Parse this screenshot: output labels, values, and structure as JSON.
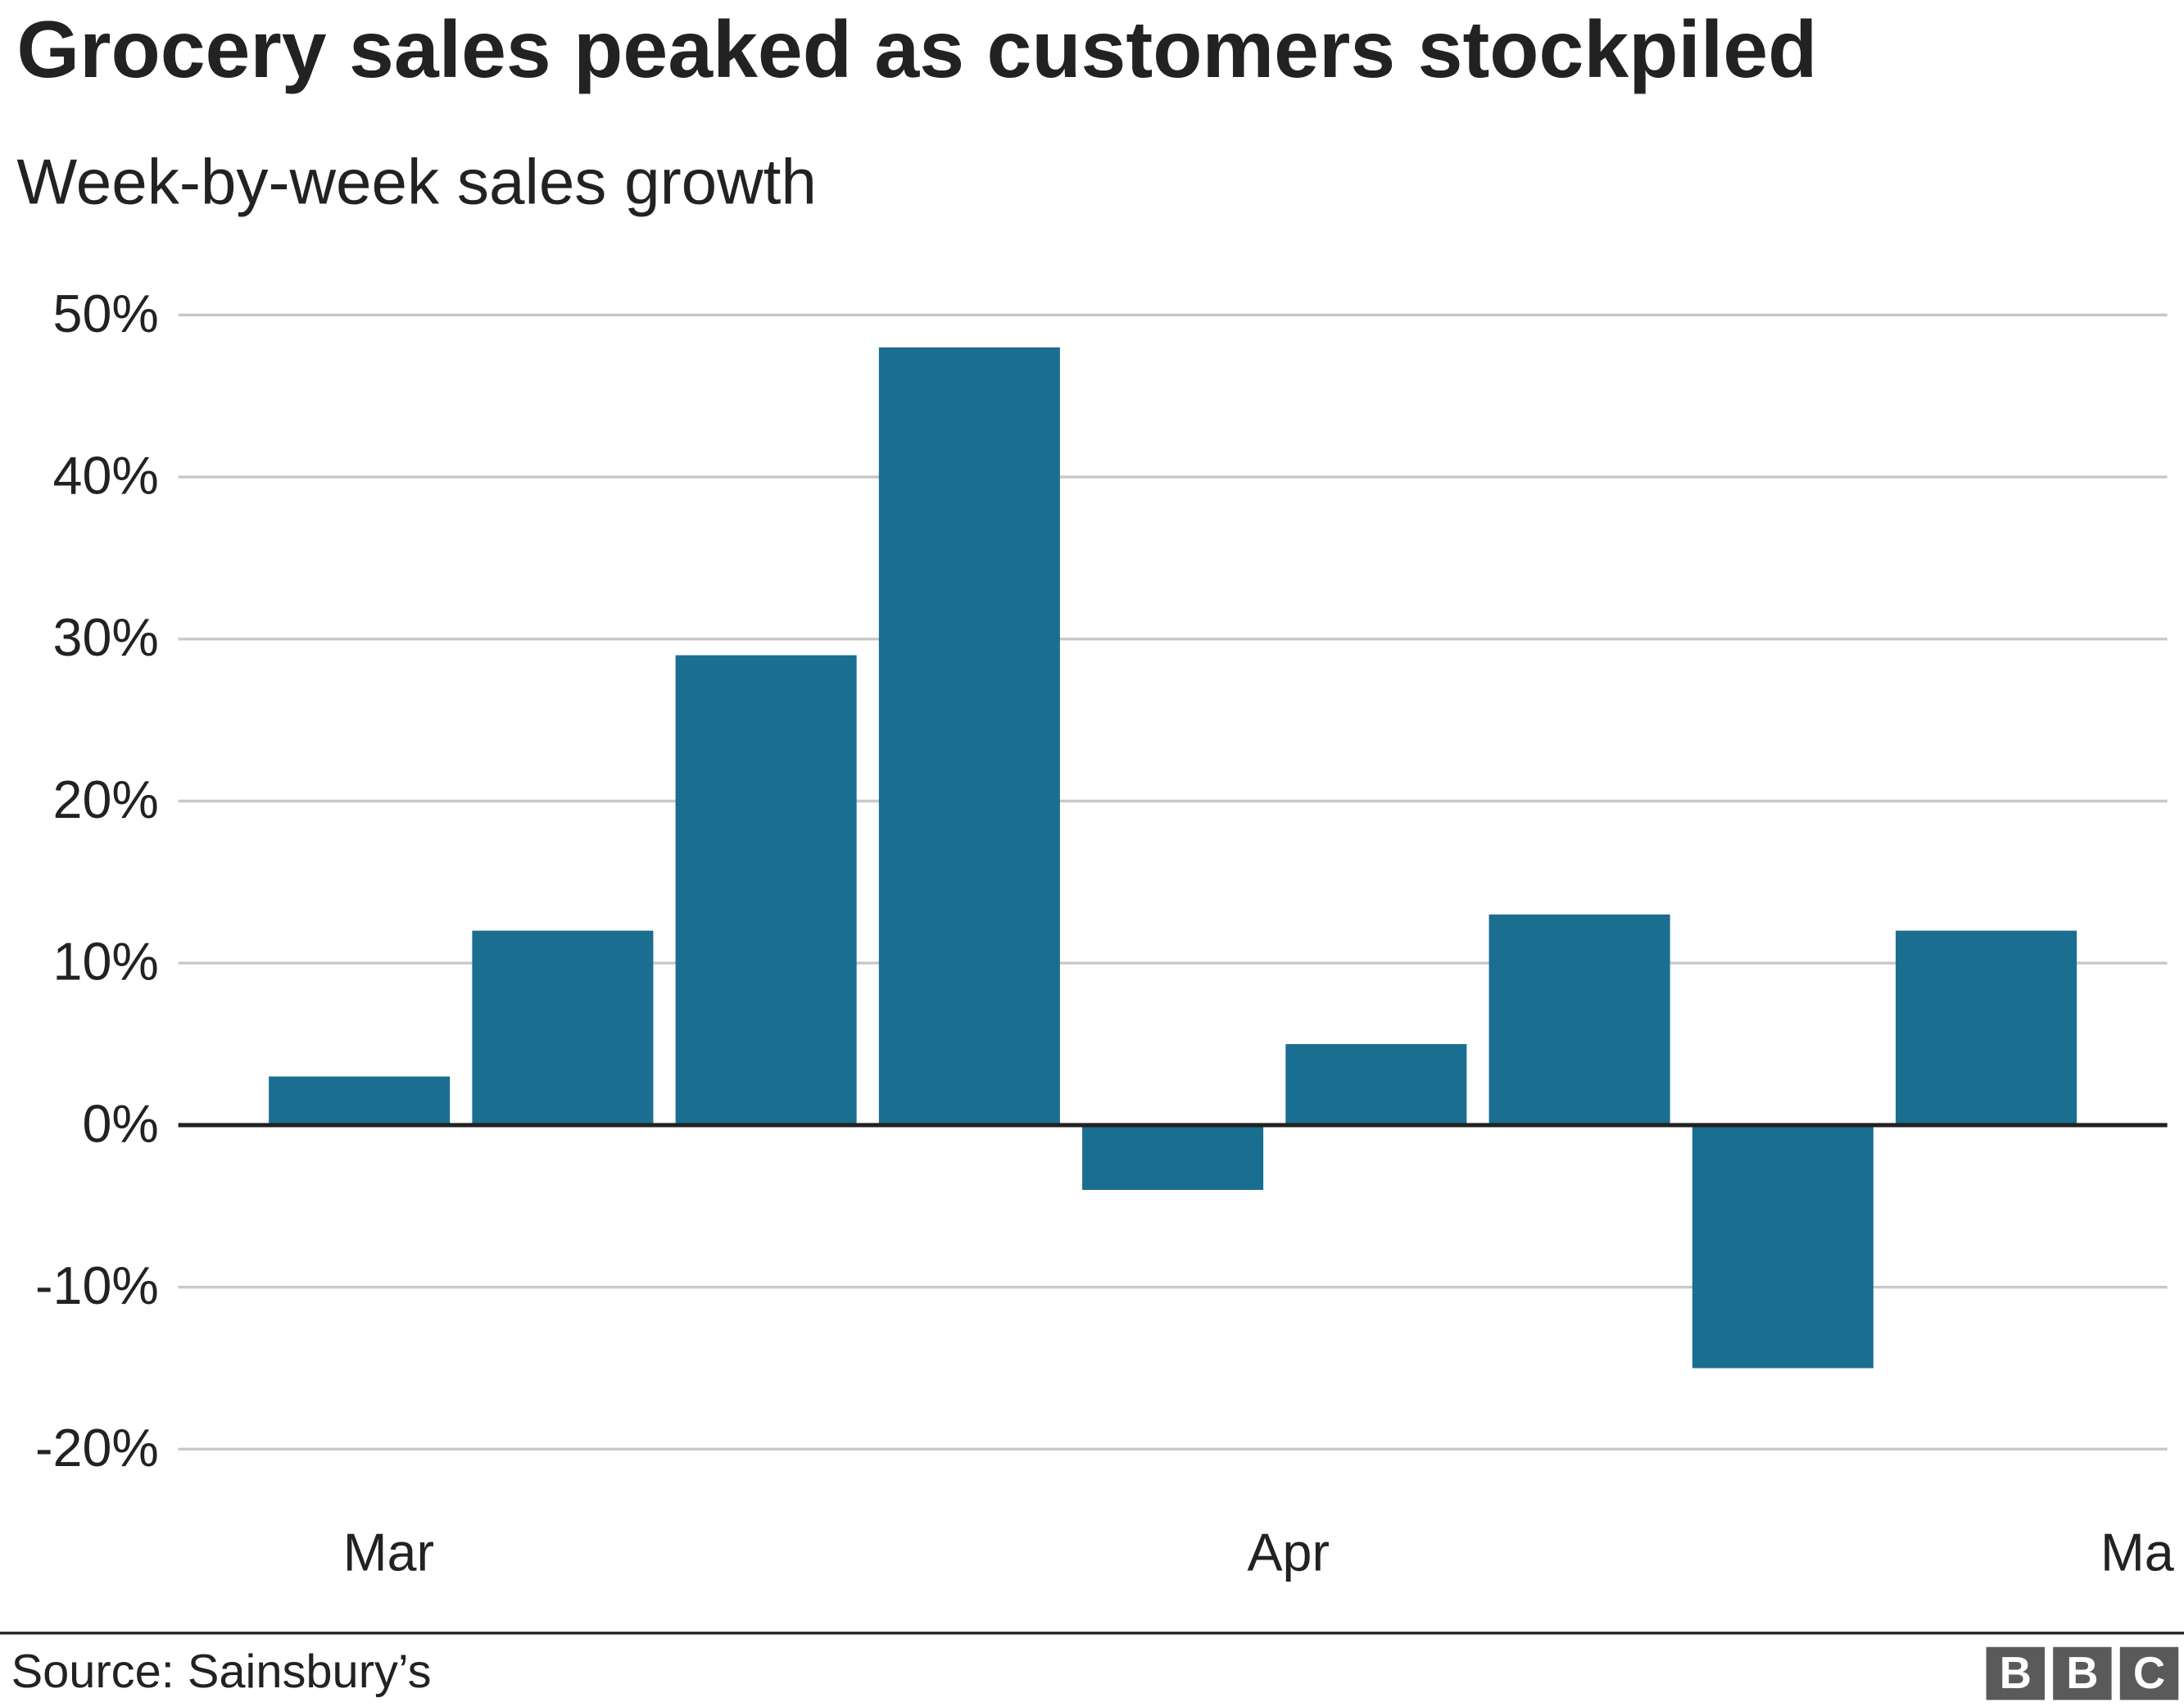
{
  "chart_data": {
    "type": "bar",
    "title": "Grocery sales peaked as customers stockpiled",
    "subtitle": "Week-by-week sales growth",
    "categories": [
      null,
      null,
      null,
      null,
      null,
      null,
      null,
      null,
      null
    ],
    "values": [
      3,
      12,
      29,
      48,
      -4,
      5,
      13,
      -15,
      12
    ],
    "color": "#1a6e8f",
    "x_labels": [
      "Mar",
      "Apr",
      "Ma"
    ],
    "ylim": [
      -20,
      50
    ],
    "yticks": [
      {
        "value": -20,
        "label": "-20%"
      },
      {
        "value": -10,
        "label": "-10%"
      },
      {
        "value": 0,
        "label": "0%"
      },
      {
        "value": 10,
        "label": "10%"
      },
      {
        "value": 20,
        "label": "20%"
      },
      {
        "value": 30,
        "label": "30%"
      },
      {
        "value": 40,
        "label": "40%"
      },
      {
        "value": 50,
        "label": "50%"
      }
    ],
    "grid": true,
    "source": "Source: Sainsbury’s",
    "logo": [
      "B",
      "B",
      "C"
    ]
  }
}
